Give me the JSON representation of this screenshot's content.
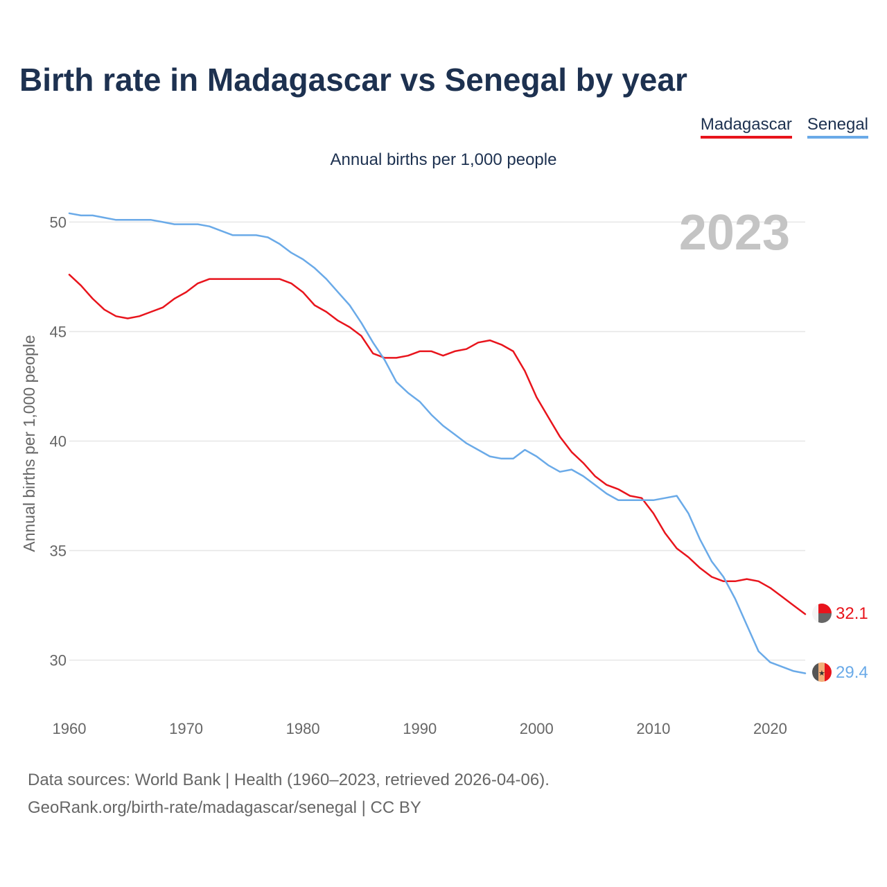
{
  "title": "Birth rate in Madagascar vs Senegal by year",
  "subtitle": "Annual births per 1,000 people",
  "year_watermark": "2023",
  "legend": [
    {
      "name": "Madagascar",
      "color": "#e8141c"
    },
    {
      "name": "Senegal",
      "color": "#6aaae8"
    }
  ],
  "footer": {
    "line1": "Data sources: World Bank | Health (1960–2023, retrieved 2026-04-06).",
    "line2": "GeoRank.org/birth-rate/madagascar/senegal | CC BY"
  },
  "chart_data": {
    "type": "line",
    "title": "Birth rate in Madagascar vs Senegal by year",
    "ylabel": "Annual births per 1,000 people",
    "xlabel": "",
    "xlim": [
      1960,
      2023
    ],
    "ylim": [
      28.5,
      51.5
    ],
    "x_ticks": [
      1960,
      1970,
      1980,
      1990,
      2000,
      2010,
      2020
    ],
    "y_ticks": [
      30,
      35,
      40,
      45,
      50
    ],
    "grid": true,
    "legend_position": "top-right",
    "x": [
      1960,
      1961,
      1962,
      1963,
      1964,
      1965,
      1966,
      1967,
      1968,
      1969,
      1970,
      1971,
      1972,
      1973,
      1974,
      1975,
      1976,
      1977,
      1978,
      1979,
      1980,
      1981,
      1982,
      1983,
      1984,
      1985,
      1986,
      1987,
      1988,
      1989,
      1990,
      1991,
      1992,
      1993,
      1994,
      1995,
      1996,
      1997,
      1998,
      1999,
      2000,
      2001,
      2002,
      2003,
      2004,
      2005,
      2006,
      2007,
      2008,
      2009,
      2010,
      2011,
      2012,
      2013,
      2014,
      2015,
      2016,
      2017,
      2018,
      2019,
      2020,
      2021,
      2022,
      2023
    ],
    "series": [
      {
        "name": "Madagascar",
        "color": "#e8141c",
        "end_label": "32.1",
        "values": [
          47.6,
          47.1,
          46.5,
          46.0,
          45.7,
          45.6,
          45.7,
          45.9,
          46.1,
          46.5,
          46.8,
          47.2,
          47.4,
          47.4,
          47.4,
          47.4,
          47.4,
          47.4,
          47.4,
          47.2,
          46.8,
          46.2,
          45.9,
          45.5,
          45.2,
          44.8,
          44.0,
          43.8,
          43.8,
          43.9,
          44.1,
          44.1,
          43.9,
          44.1,
          44.2,
          44.5,
          44.6,
          44.4,
          44.1,
          43.2,
          42.0,
          41.1,
          40.2,
          39.5,
          39.0,
          38.4,
          38.0,
          37.8,
          37.5,
          37.4,
          36.7,
          35.8,
          35.1,
          34.7,
          34.2,
          33.8,
          33.6,
          33.6,
          33.7,
          33.6,
          33.3,
          32.9,
          32.5,
          32.1
        ]
      },
      {
        "name": "Senegal",
        "color": "#6aaae8",
        "end_label": "29.4",
        "values": [
          50.4,
          50.3,
          50.3,
          50.2,
          50.1,
          50.1,
          50.1,
          50.1,
          50.0,
          49.9,
          49.9,
          49.9,
          49.8,
          49.6,
          49.4,
          49.4,
          49.4,
          49.3,
          49.0,
          48.6,
          48.3,
          47.9,
          47.4,
          46.8,
          46.2,
          45.4,
          44.5,
          43.7,
          42.7,
          42.2,
          41.8,
          41.2,
          40.7,
          40.3,
          39.9,
          39.6,
          39.3,
          39.2,
          39.2,
          39.6,
          39.3,
          38.9,
          38.6,
          38.7,
          38.4,
          38.0,
          37.6,
          37.3,
          37.3,
          37.3,
          37.3,
          37.4,
          37.5,
          36.7,
          35.5,
          34.5,
          33.8,
          32.8,
          31.6,
          30.4,
          29.9,
          29.7,
          29.5,
          29.4
        ]
      }
    ]
  }
}
